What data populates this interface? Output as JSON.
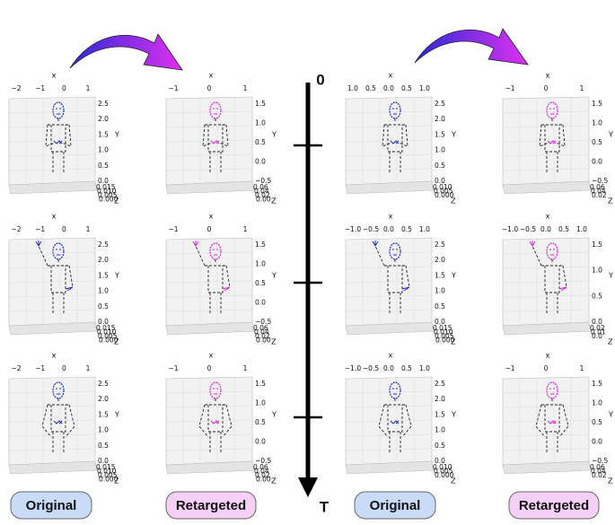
{
  "timeline": {
    "start": "0",
    "end": "T"
  },
  "buttons": [
    "Original",
    "Retargeted",
    "Original",
    "Retargeted"
  ],
  "panels": [
    {
      "x_label": "x",
      "y_label": "Y",
      "z_label": "Z",
      "x_ticks": [
        "−2",
        "−1",
        "0",
        "1"
      ],
      "y_ticks": [
        "2.5",
        "2.0",
        "1.5",
        "1.0",
        "0.5",
        "0.0"
      ],
      "z_ticks": [
        "0.015",
        "0.010",
        "0.005",
        "0.000"
      ]
    },
    {
      "x_label": "x",
      "y_label": "Y",
      "z_label": "Z",
      "x_ticks": [
        "−1",
        "0",
        "1"
      ],
      "y_ticks": [
        "1.5",
        "1.0",
        "0.5",
        "0.0",
        "−0.5"
      ],
      "z_ticks": [
        "0.06",
        "0.04",
        "0.02",
        "0.00"
      ]
    },
    {
      "x_label": "x",
      "y_label": "Y",
      "z_label": "Z",
      "x_ticks": [
        "1.0",
        "0.5",
        "0.0",
        "0.5",
        "1.0"
      ],
      "y_ticks": [
        "2.5",
        "2.0",
        "1.5",
        "1.0",
        "0.5",
        "0.0"
      ],
      "z_ticks": [
        "0.010",
        "0.005",
        "0.000"
      ]
    },
    {
      "x_label": "x",
      "y_label": "Y",
      "z_label": "Z",
      "x_ticks": [
        "−1",
        "0",
        "1"
      ],
      "y_ticks": [
        "1.5",
        "1.0",
        "0.5",
        "0.0",
        "−0.5"
      ],
      "z_ticks": [
        "0.06",
        "0.04",
        "0.02"
      ]
    },
    {
      "x_label": "x",
      "y_label": "Y",
      "z_label": "Z",
      "x_ticks": [
        "−2",
        "−1",
        "0",
        "1"
      ],
      "y_ticks": [
        "2.5",
        "2.0",
        "1.5",
        "1.0",
        "0.5",
        "0.0"
      ],
      "z_ticks": [
        "0.015",
        "0.010",
        "0.005",
        "0.000"
      ]
    },
    {
      "x_label": "x",
      "y_label": "Y",
      "z_label": "Z",
      "x_ticks": [
        "−1",
        "0",
        "1"
      ],
      "y_ticks": [
        "1.5",
        "1.0",
        "0.5",
        "0.0",
        "−0.5"
      ],
      "z_ticks": [
        "0.06",
        "0.04",
        "0.02",
        "0.00"
      ]
    },
    {
      "x_label": "x",
      "y_label": "Y",
      "z_label": "Z",
      "x_ticks": [
        "−1.0",
        "−0.5",
        "0.0",
        "0.5",
        "1.0"
      ],
      "y_ticks": [
        "2.5",
        "2.0",
        "1.5",
        "1.0",
        "0.5",
        "0.0"
      ],
      "z_ticks": [
        "0.015",
        "0.010",
        "0.005",
        "0.000"
      ]
    },
    {
      "x_label": "x",
      "y_label": "Y",
      "z_label": "Z",
      "x_ticks": [
        "−1.0",
        "−0.5",
        "0.0",
        "0.5",
        "1.0"
      ],
      "y_ticks": [
        "1.5",
        "1.0",
        "0.5",
        "0.0"
      ],
      "z_ticks": [
        "0.02",
        "0.01",
        "0.0"
      ]
    },
    {
      "x_label": "x",
      "y_label": "Y",
      "z_label": "Z",
      "x_ticks": [
        "−2",
        "−1",
        "0",
        "1"
      ],
      "y_ticks": [
        "2.5",
        "2.0",
        "1.5",
        "1.0",
        "0.5",
        "0.0"
      ],
      "z_ticks": [
        "0.015",
        "0.010",
        "0.005",
        "0.000"
      ]
    },
    {
      "x_label": "x",
      "y_label": "Y",
      "z_label": "Z",
      "x_ticks": [
        "−1",
        "0",
        "1"
      ],
      "y_ticks": [
        "1.5",
        "1.0",
        "0.5",
        "0.0",
        "−0.5"
      ],
      "z_ticks": [
        "0.06",
        "0.04",
        "0.02",
        "0.00"
      ]
    },
    {
      "x_label": "x",
      "y_label": "Y",
      "z_label": "Z",
      "x_ticks": [
        "−1.0",
        "−0.5",
        "0.0",
        "0.5",
        "1.0"
      ],
      "y_ticks": [
        "2.5",
        "2.0",
        "1.5",
        "1.0",
        "0.5",
        "0.0"
      ],
      "z_ticks": [
        "0.010",
        "0.005",
        "0.000"
      ]
    },
    {
      "x_label": "x",
      "y_label": "Y",
      "z_label": "Z",
      "x_ticks": [
        "−1",
        "0",
        "1"
      ],
      "y_ticks": [
        "1.5",
        "1.0",
        "0.5",
        "0.0",
        "−0.5"
      ],
      "z_ticks": [
        "0.06",
        "0.04",
        "0.02"
      ]
    }
  ]
}
